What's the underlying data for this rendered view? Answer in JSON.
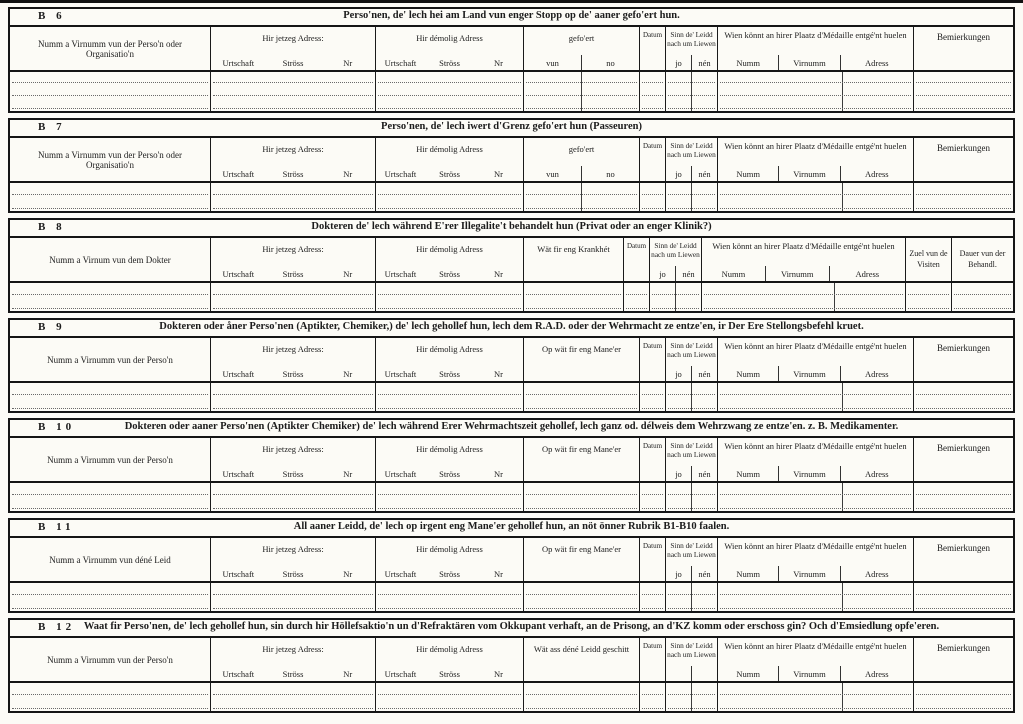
{
  "colors": {
    "ink": "#1c1c1c",
    "paper": "#fcfbf6"
  },
  "shared": {
    "addr_current": {
      "label": "Hir jetzeg Adress:",
      "sub": [
        "Urtschaft",
        "Ströss",
        "Nr"
      ]
    },
    "addr_former": {
      "label": "Hir démolig Adress",
      "sub": [
        "Urtschaft",
        "Ströss",
        "Nr"
      ]
    },
    "datum": "Datum",
    "alive": {
      "label": "Sinn de' Leidd nach um Liewen",
      "yes": "jo",
      "no": "nén"
    },
    "medal": {
      "label": "Wien könnt an hirer Plaatz d'Médaille entgé'nt huelen",
      "sub": [
        "Numm",
        "Virnumm",
        "Adress"
      ]
    },
    "remarks": "Bemierkungen"
  },
  "sections": [
    {
      "id": "B 6",
      "title": "Perso'nen, de' lech hei am Land vun enger Stopp op de' aaner gefo'ert hun.",
      "name_col": "Numm a Virnumm vun der Perso'n oder Organisatio'n",
      "mid_col": {
        "label": "gefo'ert",
        "sub": [
          "vun",
          "no"
        ]
      }
    },
    {
      "id": "B 7",
      "title": "Perso'nen, de' lech iwert d'Grenz gefo'ert hun (Passeuren)",
      "name_col": "Numm a Virnumm vun der Perso'n oder Organisatio'n",
      "mid_col": {
        "label": "gefo'ert",
        "sub": [
          "vun",
          "no"
        ]
      }
    },
    {
      "id": "B 8",
      "title": "Dokteren de' lech während E'rer Illegalite't behandelt hun (Privat oder an enger Klinik?)",
      "name_col": "Numm a Virnum vun dem Dokter",
      "mid_col": {
        "label": "Wät fir eng Krankhét"
      },
      "tail_cols": [
        "Zuel vun de Visiten",
        "Dauer vun der Behandl."
      ]
    },
    {
      "id": "B 9",
      "title": "Dokteren oder åner Perso'nen (Aptikter, Chemiker,) de' lech gehollef hun, lech dem R.A.D. oder der Wehrmacht ze entze'en, ir Der Ere Stellongsbefehl kruet.",
      "name_col": "Numm a Virnumm vun der Perso'n",
      "mid_col": {
        "label": "Op wät fir eng Mane'er"
      }
    },
    {
      "id": "B 10",
      "title": "Dokteren oder aaner Perso'nen (Aptikter Chemiker) de' lech während Erer Wehrmachtszeit gehollef, lech ganz od. délweis dem Wehrzwang ze entze'en. z. B. Medikamenter.",
      "name_col": "Numm a Virnumm vun der Perso'n",
      "mid_col": {
        "label": "Op wät fir eng Mane'er"
      }
    },
    {
      "id": "B 11",
      "title": "All aaner Leidd, de' lech op irgent eng Mane'er gehollef hun, an nöt önner Rubrik B1-B10 faalen.",
      "name_col": "Numm a Virnumm vun déné Leid",
      "mid_col": {
        "label": "Op wät fir eng Mane'er"
      }
    },
    {
      "id": "B 12",
      "title": "Waat fir Perso'nen, de' lech gehollef hun, sin durch hir Höllefsaktio'n un d'Refraktären vom Okkupant verhaft, an de Prisong, an d'KZ komm oder erschoss gin? Och d'Emsiedlung opfe'eren.",
      "name_col": "Numm a Virnumm vun der Perso'n",
      "mid_col": {
        "label": "Wät ass déné Leidd geschitt"
      }
    }
  ]
}
